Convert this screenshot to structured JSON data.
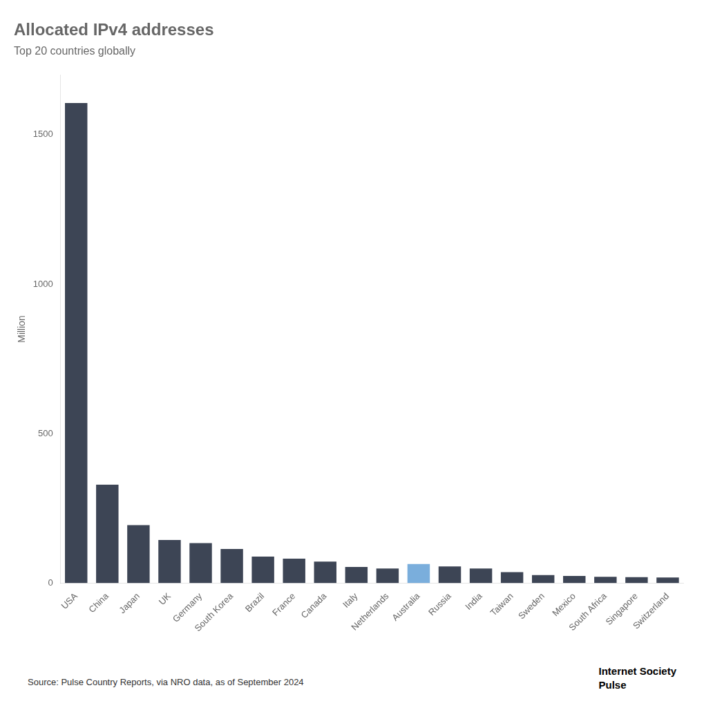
{
  "chart_data": {
    "type": "bar",
    "title": "Allocated IPv4 addresses",
    "subtitle": "Top 20 countries globally",
    "ylabel": "Million",
    "categories": [
      "USA",
      "China",
      "Japan",
      "UK",
      "Germany",
      "South Korea",
      "Brazil",
      "France",
      "Canada",
      "Italy",
      "Netherlands",
      "Australia",
      "Russia",
      "India",
      "Taiwan",
      "Sweden",
      "Mexico",
      "South Africa",
      "Singapore",
      "Switzerland"
    ],
    "values": [
      1605,
      330,
      195,
      145,
      135,
      115,
      90,
      83,
      73,
      55,
      50,
      65,
      57,
      50,
      38,
      28,
      25,
      22,
      21,
      20
    ],
    "colors": [
      "#3d4555",
      "#3d4555",
      "#3d4555",
      "#3d4555",
      "#3d4555",
      "#3d4555",
      "#3d4555",
      "#3d4555",
      "#3d4555",
      "#3d4555",
      "#3d4555",
      "#7aaedc",
      "#3d4555",
      "#3d4555",
      "#3d4555",
      "#3d4555",
      "#3d4555",
      "#3d4555",
      "#3d4555",
      "#3d4555"
    ],
    "ylim": [
      0,
      1700
    ],
    "yticks": [
      0,
      500,
      1000,
      1500
    ],
    "grid": false,
    "annotations": [
      "Source: Pulse Country Reports, via NRO data, as of September 2024",
      "Internet Society",
      "Pulse"
    ]
  }
}
